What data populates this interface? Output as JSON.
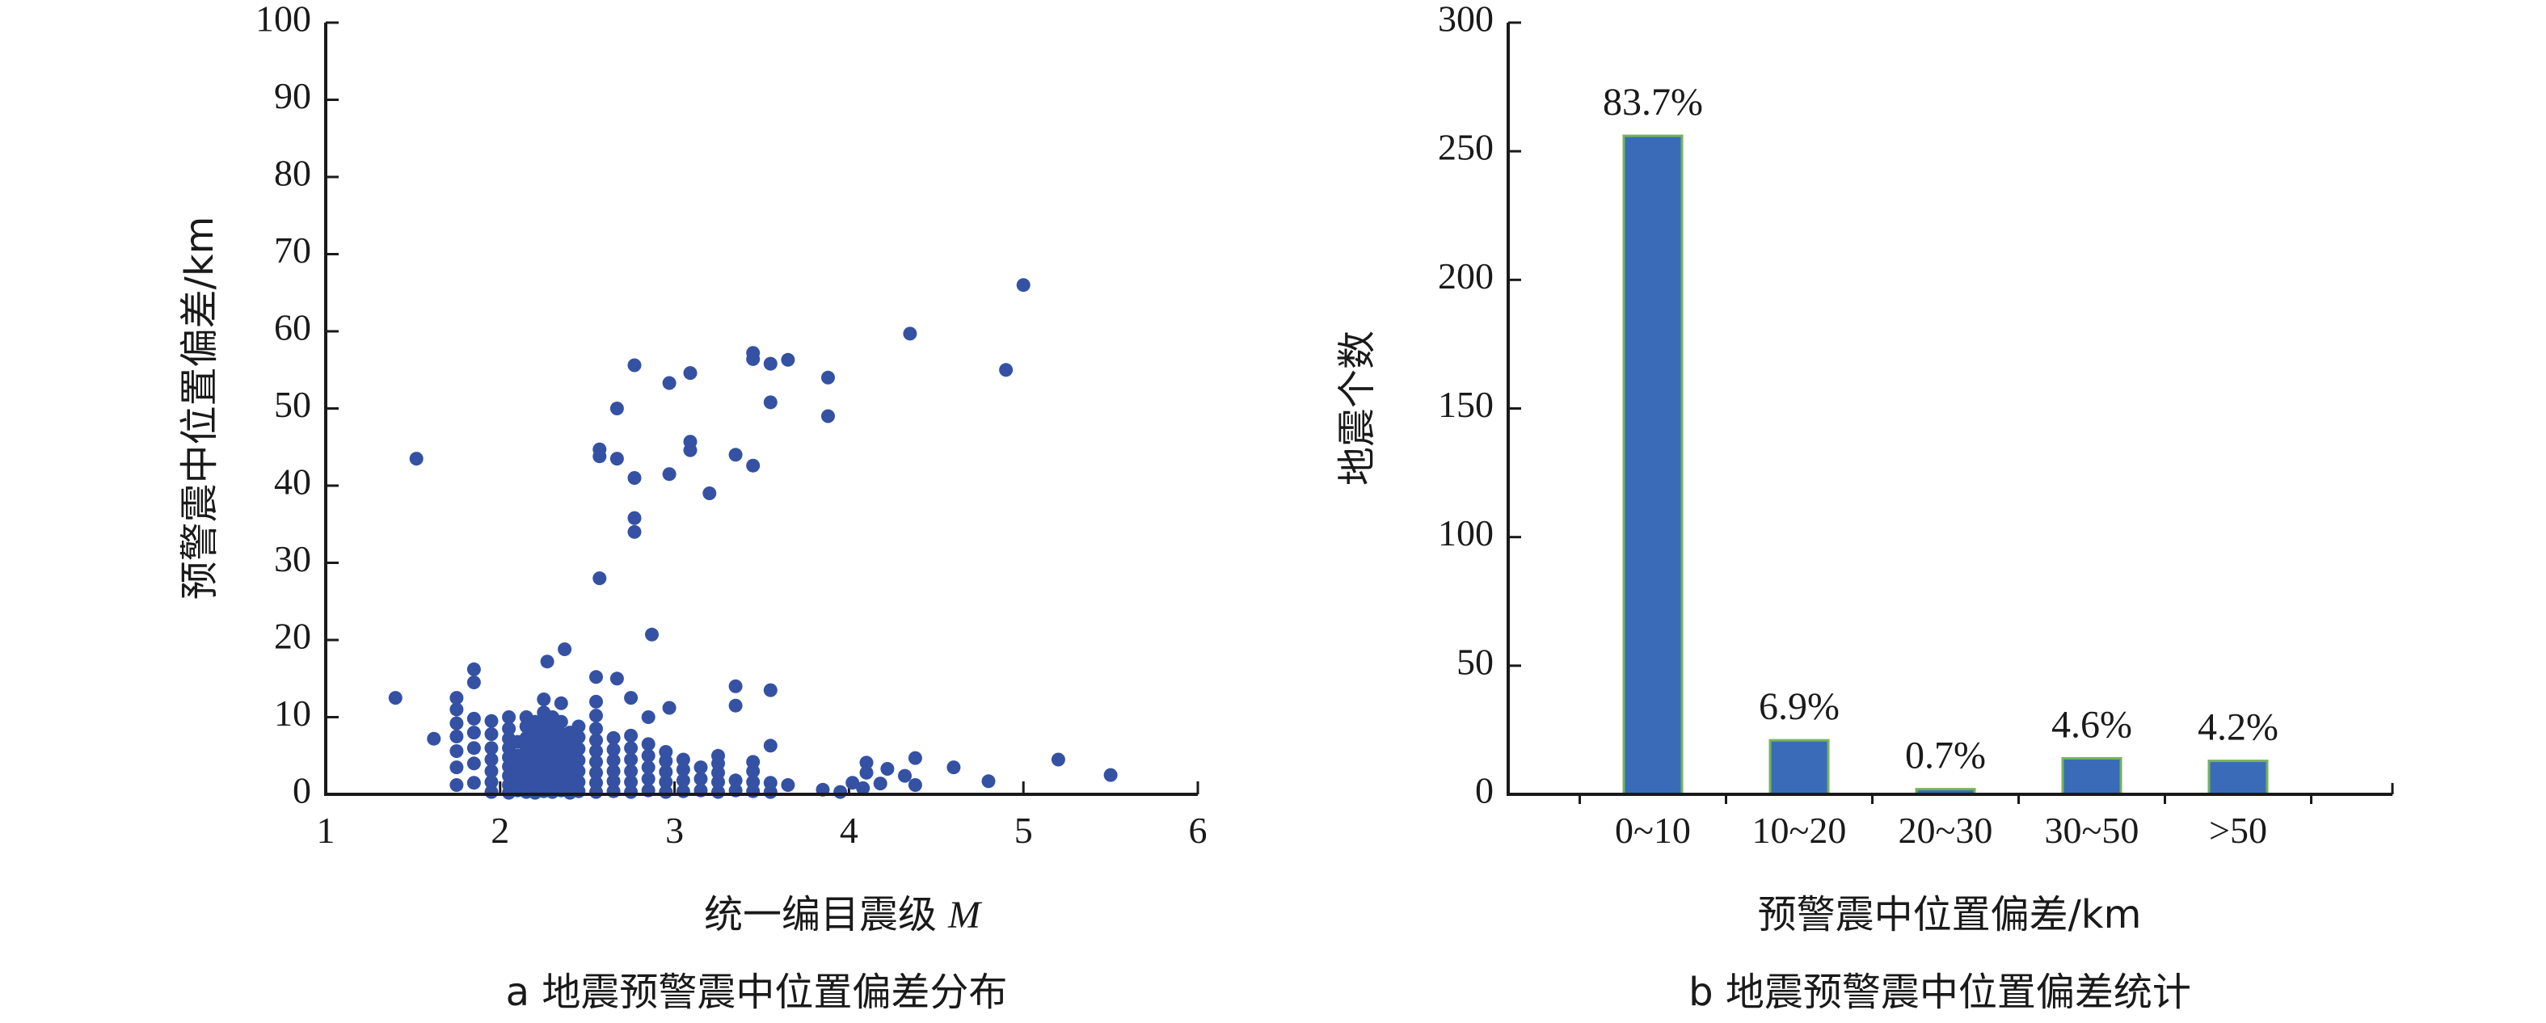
{
  "chart_data": [
    {
      "type": "scatter",
      "title": "",
      "caption": "a 地震预警震中位置偏差分布",
      "xlabel": "统一编目震级",
      "xlabel_symbol": "M",
      "ylabel": "预警震中位置偏差/km",
      "xlim": [
        1,
        6
      ],
      "ylim": [
        0,
        100
      ],
      "xticks": [
        1,
        2,
        3,
        4,
        5,
        6
      ],
      "yticks": [
        0,
        10,
        20,
        30,
        40,
        50,
        60,
        70,
        80,
        90,
        100
      ],
      "color": "#3451a3",
      "points": [
        [
          1.4,
          12.5
        ],
        [
          1.52,
          43.5
        ],
        [
          1.62,
          7.2
        ],
        [
          1.75,
          1.2
        ],
        [
          1.75,
          3.5
        ],
        [
          1.75,
          5.6
        ],
        [
          1.75,
          7.5
        ],
        [
          1.75,
          9.2
        ],
        [
          1.75,
          11
        ],
        [
          1.75,
          12.5
        ],
        [
          1.85,
          1.5
        ],
        [
          1.85,
          4
        ],
        [
          1.85,
          6
        ],
        [
          1.85,
          8
        ],
        [
          1.85,
          9.8
        ],
        [
          1.85,
          14.5
        ],
        [
          1.85,
          16.2
        ],
        [
          1.95,
          0.3
        ],
        [
          1.95,
          1.6
        ],
        [
          1.95,
          3
        ],
        [
          1.95,
          4.5
        ],
        [
          1.95,
          6
        ],
        [
          1.95,
          7.8
        ],
        [
          1.95,
          9.5
        ],
        [
          2.05,
          0.2
        ],
        [
          2.05,
          1.2
        ],
        [
          2.05,
          2.4
        ],
        [
          2.05,
          3.6
        ],
        [
          2.05,
          4.8
        ],
        [
          2.05,
          6
        ],
        [
          2.05,
          7.2
        ],
        [
          2.05,
          8.5
        ],
        [
          2.05,
          10
        ],
        [
          2.1,
          0.5
        ],
        [
          2.1,
          2
        ],
        [
          2.1,
          3.5
        ],
        [
          2.1,
          5
        ],
        [
          2.1,
          6.8
        ],
        [
          2.15,
          0.3
        ],
        [
          2.15,
          1.5
        ],
        [
          2.15,
          2.8
        ],
        [
          2.15,
          4.2
        ],
        [
          2.15,
          5.8
        ],
        [
          2.15,
          7.3
        ],
        [
          2.15,
          8.8
        ],
        [
          2.15,
          10
        ],
        [
          2.2,
          0.2
        ],
        [
          2.2,
          1.3
        ],
        [
          2.2,
          2.5
        ],
        [
          2.2,
          3.8
        ],
        [
          2.2,
          5
        ],
        [
          2.2,
          6.4
        ],
        [
          2.2,
          7.8
        ],
        [
          2.2,
          9.4
        ],
        [
          2.25,
          0.4
        ],
        [
          2.25,
          1.8
        ],
        [
          2.25,
          3.2
        ],
        [
          2.25,
          4.6
        ],
        [
          2.25,
          6
        ],
        [
          2.25,
          7.5
        ],
        [
          2.25,
          9
        ],
        [
          2.25,
          10.6
        ],
        [
          2.25,
          12.3
        ],
        [
          2.3,
          0.3
        ],
        [
          2.3,
          1.5
        ],
        [
          2.3,
          2.8
        ],
        [
          2.3,
          4
        ],
        [
          2.3,
          5.5
        ],
        [
          2.3,
          7
        ],
        [
          2.3,
          8.5
        ],
        [
          2.3,
          10
        ],
        [
          2.35,
          0.5
        ],
        [
          2.35,
          2
        ],
        [
          2.35,
          3.4
        ],
        [
          2.35,
          4.8
        ],
        [
          2.35,
          6.3
        ],
        [
          2.35,
          7.8
        ],
        [
          2.35,
          9.4
        ],
        [
          2.35,
          11.8
        ],
        [
          2.4,
          0.2
        ],
        [
          2.4,
          1.4
        ],
        [
          2.4,
          2.6
        ],
        [
          2.4,
          3.9
        ],
        [
          2.4,
          5.2
        ],
        [
          2.4,
          6.6
        ],
        [
          2.4,
          8
        ],
        [
          2.45,
          0.4
        ],
        [
          2.45,
          1.6
        ],
        [
          2.45,
          3
        ],
        [
          2.45,
          4.4
        ],
        [
          2.45,
          5.9
        ],
        [
          2.45,
          7.4
        ],
        [
          2.45,
          8.8
        ],
        [
          2.55,
          0.3
        ],
        [
          2.55,
          1.5
        ],
        [
          2.55,
          2.8
        ],
        [
          2.55,
          4.2
        ],
        [
          2.55,
          5.6
        ],
        [
          2.55,
          7
        ],
        [
          2.55,
          8.5
        ],
        [
          2.55,
          10.2
        ],
        [
          2.55,
          12
        ],
        [
          2.55,
          15.2
        ],
        [
          2.65,
          0.4
        ],
        [
          2.65,
          1.7
        ],
        [
          2.65,
          3
        ],
        [
          2.65,
          4.4
        ],
        [
          2.65,
          5.8
        ],
        [
          2.65,
          7.3
        ],
        [
          2.75,
          0.3
        ],
        [
          2.75,
          1.6
        ],
        [
          2.75,
          3
        ],
        [
          2.75,
          4.5
        ],
        [
          2.75,
          6
        ],
        [
          2.75,
          7.6
        ],
        [
          2.75,
          12.5
        ],
        [
          2.85,
          0.5
        ],
        [
          2.85,
          2
        ],
        [
          2.85,
          3.5
        ],
        [
          2.85,
          5
        ],
        [
          2.85,
          6.5
        ],
        [
          2.85,
          10
        ],
        [
          2.95,
          0.3
        ],
        [
          2.95,
          1.6
        ],
        [
          2.95,
          2.9
        ],
        [
          2.95,
          4.3
        ],
        [
          2.95,
          5.5
        ],
        [
          3.05,
          0.4
        ],
        [
          3.05,
          1.8
        ],
        [
          3.05,
          3.2
        ],
        [
          3.05,
          4.5
        ],
        [
          3.15,
          0.5
        ],
        [
          3.15,
          2
        ],
        [
          3.15,
          3.5
        ],
        [
          3.25,
          0.3
        ],
        [
          3.25,
          1.6
        ],
        [
          3.25,
          2.8
        ],
        [
          3.25,
          4
        ],
        [
          3.25,
          5
        ],
        [
          3.35,
          0.5
        ],
        [
          3.35,
          1.8
        ],
        [
          3.35,
          11.5
        ],
        [
          3.35,
          14
        ],
        [
          3.45,
          0.4
        ],
        [
          3.45,
          1.6
        ],
        [
          3.45,
          3
        ],
        [
          3.45,
          4.2
        ],
        [
          3.55,
          0.3
        ],
        [
          3.55,
          1.5
        ],
        [
          3.55,
          6.3
        ],
        [
          3.55,
          13.5
        ],
        [
          3.65,
          1.2
        ],
        [
          2.27,
          17.2
        ],
        [
          2.37,
          18.8
        ],
        [
          2.67,
          15
        ],
        [
          2.87,
          20.7
        ],
        [
          2.97,
          11.2
        ],
        [
          2.57,
          28
        ],
        [
          2.57,
          43.8
        ],
        [
          2.57,
          44.7
        ],
        [
          2.67,
          43.5
        ],
        [
          2.67,
          50
        ],
        [
          2.77,
          34
        ],
        [
          2.77,
          35.8
        ],
        [
          2.77,
          41
        ],
        [
          2.77,
          55.6
        ],
        [
          2.97,
          41.5
        ],
        [
          2.97,
          53.3
        ],
        [
          3.09,
          54.6
        ],
        [
          3.09,
          45.7
        ],
        [
          3.09,
          44.6
        ],
        [
          3.2,
          39
        ],
        [
          3.35,
          44
        ],
        [
          3.45,
          42.6
        ],
        [
          3.45,
          56.4
        ],
        [
          3.45,
          57.2
        ],
        [
          3.55,
          55.8
        ],
        [
          3.55,
          50.8
        ],
        [
          3.65,
          56.3
        ],
        [
          3.88,
          49
        ],
        [
          3.88,
          54
        ],
        [
          3.85,
          0.6
        ],
        [
          3.95,
          0.3
        ],
        [
          4.02,
          1.5
        ],
        [
          4.08,
          0.8
        ],
        [
          4.1,
          2.8
        ],
        [
          4.1,
          4.1
        ],
        [
          4.18,
          1.4
        ],
        [
          4.22,
          3.3
        ],
        [
          4.32,
          2.4
        ],
        [
          4.38,
          4.7
        ],
        [
          4.38,
          1.2
        ],
        [
          4.6,
          3.5
        ],
        [
          4.8,
          1.7
        ],
        [
          5.2,
          4.5
        ],
        [
          5.5,
          2.5
        ],
        [
          4.35,
          59.7
        ],
        [
          4.9,
          55
        ],
        [
          5,
          66
        ]
      ]
    },
    {
      "type": "bar",
      "title": "",
      "caption": "b 地震预警震中位置偏差统计",
      "xlabel": "预警震中位置偏差/km",
      "ylabel": "地震个数",
      "ylim": [
        0,
        300
      ],
      "yticks": [
        0,
        50,
        100,
        150,
        200,
        250,
        300
      ],
      "categories": [
        "0~10",
        "10~20",
        "20~30",
        "30~50",
        ">50"
      ],
      "values": [
        256,
        21,
        2,
        14,
        13
      ],
      "data_labels": [
        "83.7%",
        "6.9%",
        "0.7%",
        "4.6%",
        "4.2%"
      ],
      "bar_fill": "#3a6bb8",
      "bar_stroke": "#76b35a"
    }
  ]
}
